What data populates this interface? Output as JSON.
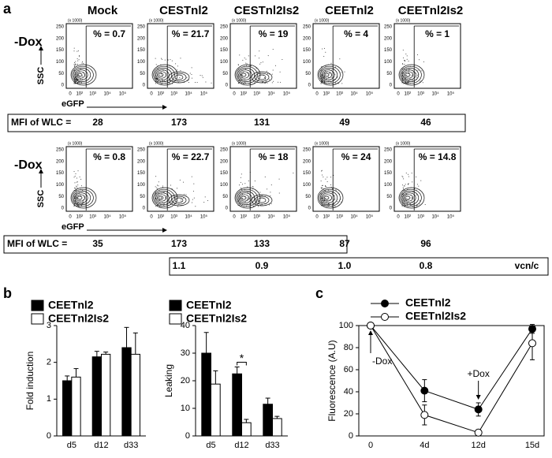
{
  "panel_labels": [
    "a",
    "b",
    "c"
  ],
  "flow": {
    "columns": [
      "Mock",
      "CESTnl2",
      "CESTnl2Is2",
      "CEETnl2",
      "CEETnl2Is2"
    ],
    "y_label": "SSC",
    "y_unit": "(x 1000)",
    "x_label": "eGFP",
    "yticks": [
      "250",
      "200",
      "150",
      "100",
      "50",
      "0"
    ],
    "xticks": [
      "0",
      "10²",
      "10³",
      "10⁴",
      "10⁵"
    ],
    "mfi_label": "MFI of WLC =",
    "rows": [
      {
        "condition": "-Dox",
        "percents": [
          "% = 0.7",
          "% = 21.7",
          "% = 19",
          "% = 4",
          "% = 1"
        ],
        "mfi": [
          "28",
          "173",
          "131",
          "49",
          "46"
        ]
      },
      {
        "condition": "-Dox",
        "percents": [
          "% = 0.8",
          "% = 22.7",
          "% = 18",
          "% = 24",
          "% = 14.8"
        ],
        "mfi": [
          "35",
          "173",
          "133",
          "87",
          "96"
        ],
        "vcn": [
          "1.1",
          "0.9",
          "1.0",
          "0.8"
        ]
      }
    ],
    "vcn_unit": "vcn/c"
  },
  "chart_data": [
    {
      "type": "bar",
      "ylabel": "Fold induction",
      "categories": [
        "d5",
        "d12",
        "d33"
      ],
      "series": [
        {
          "name": "CEETnl2",
          "color": "#000000",
          "values": [
            1.5,
            2.15,
            2.4
          ],
          "errors": [
            0.13,
            0.15,
            0.55
          ]
        },
        {
          "name": "CEETnl2Is2",
          "color": "#ffffff",
          "values": [
            1.6,
            2.22,
            2.22
          ],
          "errors": [
            0.23,
            0.06,
            0.58
          ]
        }
      ],
      "ylim": [
        0,
        3
      ],
      "yticks": [
        0,
        1,
        2,
        3
      ]
    },
    {
      "type": "bar",
      "ylabel": "Leaking",
      "categories": [
        "d5",
        "d12",
        "d33"
      ],
      "series": [
        {
          "name": "CEETnl2",
          "color": "#000000",
          "values": [
            30,
            22.5,
            11.5
          ],
          "errors": [
            7.5,
            2.5,
            2.2
          ]
        },
        {
          "name": "CEETnl2Is2",
          "color": "#ffffff",
          "values": [
            18.8,
            4.8,
            6.3
          ],
          "errors": [
            4.8,
            1.2,
            0.8
          ]
        }
      ],
      "ylim": [
        0,
        40
      ],
      "yticks": [
        0,
        10,
        20,
        30,
        40
      ],
      "annotation": "*"
    },
    {
      "type": "line",
      "ylabel": "Fluorescence (A.U)",
      "categories": [
        "0",
        "4d",
        "12d",
        "15d"
      ],
      "series": [
        {
          "name": "CEETnl2",
          "color": "#000000",
          "values": [
            100,
            41,
            24,
            97
          ],
          "errors": [
            0,
            10,
            6,
            4
          ]
        },
        {
          "name": "CEETnl2Is2",
          "color": "#ffffff",
          "values": [
            100,
            19,
            3,
            84
          ],
          "errors": [
            0,
            9,
            0,
            15
          ]
        }
      ],
      "ylim": [
        0,
        100
      ],
      "yticks": [
        0,
        20,
        40,
        60,
        80,
        100
      ],
      "annotations": [
        "-Dox",
        "+Dox"
      ]
    }
  ]
}
